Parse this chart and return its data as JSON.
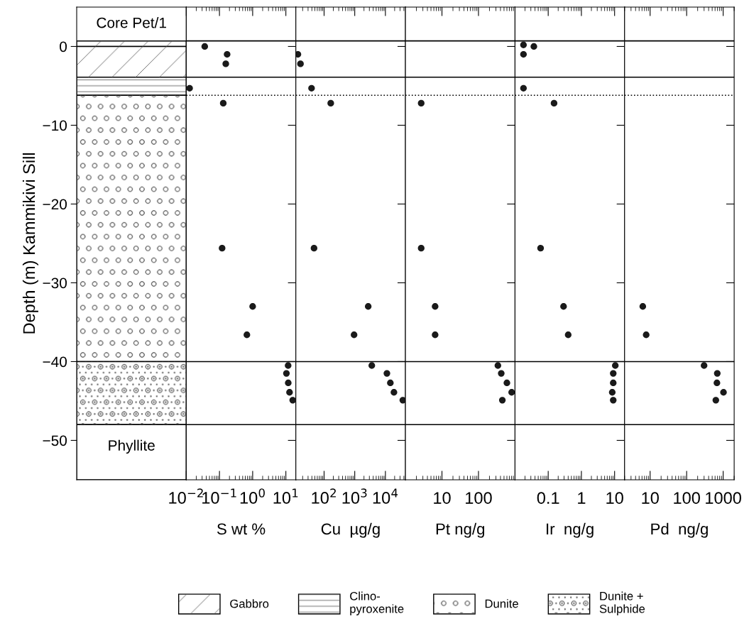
{
  "chart_data": [
    {
      "type": "bar",
      "stacked": true,
      "title": "Core Pet/1",
      "ylabel": "Depth (m) Kammikivi Sill",
      "ylim": [
        -55,
        5
      ],
      "yticks": [
        0,
        -10,
        -20,
        -30,
        -40,
        -50
      ],
      "tick_labels": "y",
      "legend": "bottom",
      "categories": [
        null
      ],
      "series": [
        {
          "color": "#ffffff",
          "values": [
            0.7
          ]
        },
        {
          "name": "Gabbro",
          "color": "#ffffff",
          "values": [
            -3.9
          ]
        },
        {
          "name": "Clino-\npyroxenite",
          "color": "#ffffff",
          "values": [
            -2.3
          ]
        },
        {
          "name": "Dunite",
          "color": "#ffffff",
          "values": [
            -33.8
          ]
        },
        {
          "name": "Dunite +\nSulphide",
          "color": "#ffffff",
          "values": [
            -8
          ]
        },
        {
          "color": "#ffffff",
          "values": [
            -7
          ]
        }
      ],
      "annotations": [
        "Phyllite"
      ]
    },
    {
      "type": "scatter",
      "xlabel": "S wt %",
      "log": "x",
      "marker": "circle",
      "color": "#1a1a1a",
      "tick_labels": "x",
      "x": [
        0.036,
        0.17,
        0.155,
        0.0126,
        0.13,
        0.12,
        1.0,
        0.67,
        11.7,
        10.4,
        11.8,
        12.9,
        16.1
      ],
      "values": [
        0,
        -1,
        -2.2,
        -5.3,
        -7.2,
        -25.6,
        -33,
        -36.6,
        -40.5,
        -41.5,
        -42.7,
        -43.9,
        -44.9
      ],
      "xlim": [
        0.01,
        20
      ],
      "xticks": [
        {
          "value": 0.01,
          "label": "10$^{−2}$"
        },
        {
          "value": 0.1,
          "label": "10$^{−1}$"
        },
        {
          "value": 1,
          "label": "10$^{0}$"
        },
        {
          "value": 10,
          "label": "10$^{1}$"
        }
      ],
      "ylim": [
        -55,
        5
      ],
      "yticks": [
        0,
        -10,
        -20,
        -30,
        -40,
        -50
      ],
      "ref_lines": [
        {
          "axis": "y",
          "value": 0.7
        },
        {
          "axis": "y",
          "value": -3.9
        },
        {
          "axis": "y",
          "value": -6.2,
          "line_style": "dotted"
        },
        {
          "axis": "y",
          "value": -40
        },
        {
          "axis": "y",
          "value": -48
        }
      ]
    },
    {
      "type": "scatter",
      "xlabel": "Cu  µg/g",
      "log": "x",
      "marker": "circle",
      "color": "#1a1a1a",
      "tick_labels": "x",
      "x": [
        14,
        17,
        39,
        165,
        47,
        2750,
        950,
        3600,
        11200,
        14500,
        19000,
        37000
      ],
      "values": [
        -1,
        -2.2,
        -5.3,
        -7.2,
        -25.6,
        -33,
        -36.6,
        -40.5,
        -41.5,
        -42.7,
        -43.9,
        -44.9
      ],
      "xlim": [
        12,
        45000
      ],
      "xticks": [
        {
          "value": 100,
          "label": "10$^{2}$"
        },
        {
          "value": 1000,
          "label": "10$^{3}$"
        },
        {
          "value": 10000,
          "label": "10$^{4}$"
        }
      ],
      "ylim": [
        -55,
        5
      ],
      "yticks": [
        0,
        -10,
        -20,
        -30,
        -40,
        -50
      ],
      "ref_lines": [
        {
          "axis": "y",
          "value": 0.7
        },
        {
          "axis": "y",
          "value": -3.9
        },
        {
          "axis": "y",
          "value": -6.2,
          "line_style": "dotted"
        },
        {
          "axis": "y",
          "value": -40
        },
        {
          "axis": "y",
          "value": -48
        }
      ]
    },
    {
      "type": "scatter",
      "xlabel": "Pt ng/g",
      "log": "x",
      "marker": "circle",
      "color": "#1a1a1a",
      "tick_labels": "x",
      "x": [
        2.7,
        2.7,
        6.5,
        6.5,
        340,
        420,
        600,
        810,
        450
      ],
      "values": [
        -7.2,
        -25.6,
        -33,
        -36.6,
        -40.5,
        -41.5,
        -42.7,
        -43.9,
        -44.9
      ],
      "xlim": [
        1,
        1000
      ],
      "xticks": [
        10,
        100
      ],
      "ylim": [
        -55,
        5
      ],
      "yticks": [
        0,
        -10,
        -20,
        -30,
        -40,
        -50
      ],
      "ref_lines": [
        {
          "axis": "y",
          "value": 0.7
        },
        {
          "axis": "y",
          "value": -3.9
        },
        {
          "axis": "y",
          "value": -6.2,
          "line_style": "dotted"
        },
        {
          "axis": "y",
          "value": -40
        },
        {
          "axis": "y",
          "value": -48
        }
      ]
    },
    {
      "type": "scatter",
      "xlabel": "Ir  ng/g",
      "log": "x",
      "marker": "circle",
      "color": "#1a1a1a",
      "tick_labels": "x",
      "x": [
        0.018,
        0.037,
        0.018,
        0.018,
        0.15,
        0.059,
        0.29,
        0.4,
        10.5,
        9.1,
        9.1,
        8.5,
        9.1
      ],
      "values": [
        0.2,
        0,
        -1,
        -5.3,
        -7.2,
        -25.6,
        -33,
        -36.6,
        -40.5,
        -41.5,
        -42.7,
        -43.9,
        -44.9
      ],
      "xlim": [
        0.01,
        20
      ],
      "xticks": [
        0.1,
        1,
        10
      ],
      "ylim": [
        -55,
        5
      ],
      "yticks": [
        0,
        -10,
        -20,
        -30,
        -40,
        -50
      ],
      "ref_lines": [
        {
          "axis": "y",
          "value": 0.7
        },
        {
          "axis": "y",
          "value": -3.9
        },
        {
          "axis": "y",
          "value": -6.2,
          "line_style": "dotted"
        },
        {
          "axis": "y",
          "value": -40
        },
        {
          "axis": "y",
          "value": -48
        }
      ]
    },
    {
      "type": "scatter",
      "xlabel": "Pd  ng/g",
      "log": "x",
      "marker": "circle",
      "color": "#1a1a1a",
      "tick_labels": "x",
      "x": [
        6.3,
        7.8,
        300,
        690,
        675,
        1020,
        630
      ],
      "values": [
        -33,
        -36.6,
        -40.5,
        -41.5,
        -42.7,
        -43.9,
        -44.9
      ],
      "xlim": [
        2,
        2000
      ],
      "xticks": [
        10,
        100,
        1000
      ],
      "ylim": [
        -55,
        5
      ],
      "yticks": [
        0,
        -10,
        -20,
        -30,
        -40,
        -50
      ],
      "ref_lines": [
        {
          "axis": "y",
          "value": 0.7
        },
        {
          "axis": "y",
          "value": -3.9
        },
        {
          "axis": "y",
          "value": -6.2,
          "line_style": "dotted"
        },
        {
          "axis": "y",
          "value": -40
        },
        {
          "axis": "y",
          "value": -48
        }
      ]
    }
  ]
}
